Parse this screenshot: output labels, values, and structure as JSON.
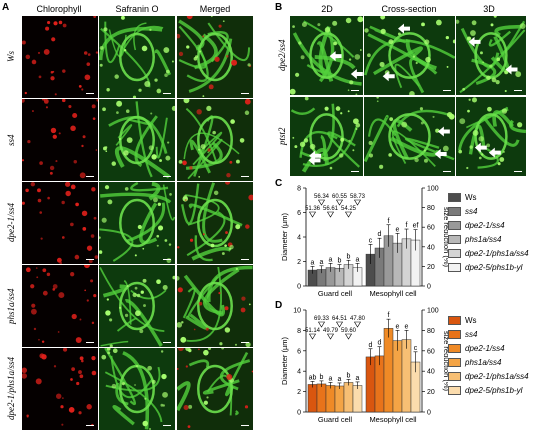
{
  "panelA": {
    "letter": "A",
    "columns": [
      "Chlorophyll",
      "Safranin O",
      "Merged"
    ],
    "rows": [
      "Ws",
      "ss4",
      "dpe2-1/ss4",
      "phs1a/ss4",
      "dpe2-1/phs1a/ss4"
    ]
  },
  "panelB": {
    "letter": "B",
    "columns": [
      "2D",
      "Cross-section",
      "3D"
    ],
    "rows": [
      "dpe2/ss4",
      "ptst2"
    ]
  },
  "panelC": {
    "letter": "C",
    "colors": {
      "bars": [
        "#4d4d4d",
        "#7a7a7a",
        "#999999",
        "#b8b8b8",
        "#d4d4d4",
        "#f2f2f2"
      ]
    }
  },
  "panelD": {
    "letter": "D",
    "colors": {
      "bars": [
        "#d9560f",
        "#e8731a",
        "#ef8a26",
        "#f4a445",
        "#f7bf74",
        "#fbdcad"
      ]
    }
  },
  "chart_data": [
    {
      "type": "bar",
      "panel": "C",
      "categories": [
        "Guard cell",
        "Mesophyll cell"
      ],
      "series": [
        {
          "name": "Ws",
          "values": [
            1.3,
            2.6
          ],
          "err": [
            0.3,
            0.8
          ],
          "letters": [
            "a",
            "c"
          ]
        },
        {
          "name": "ss4",
          "values": [
            1.35,
            3.1
          ],
          "err": [
            0.3,
            0.8
          ],
          "letters": [
            "a",
            "d"
          ]
        },
        {
          "name": "dpe2-1/ss4",
          "values": [
            1.5,
            4.1
          ],
          "err": [
            0.35,
            0.9
          ],
          "letters": [
            "a",
            "f"
          ]
        },
        {
          "name": "phs1a/ss4",
          "values": [
            1.45,
            3.5
          ],
          "err": [
            0.3,
            0.8
          ],
          "letters": [
            "b",
            "e"
          ]
        },
        {
          "name": "dpe2-1/phs1a/ss4",
          "values": [
            1.75,
            3.85
          ],
          "err": [
            0.35,
            0.8
          ],
          "letters": [
            "b",
            "f"
          ]
        },
        {
          "name": "dpe2-5/phs1b-yl",
          "values": [
            1.5,
            3.75
          ],
          "err": [
            0.35,
            0.85
          ],
          "letters": [
            "a",
            "ef"
          ]
        }
      ],
      "annotations": [
        "51.36",
        "56.34",
        "56.61",
        "60.55",
        "54.25",
        "58.73"
      ],
      "ylabel": "Diameter (µm)",
      "y2label": "size reduction (%)",
      "ylim": [
        0,
        8
      ],
      "y2lim": [
        0,
        100
      ],
      "yticks": [
        "0",
        "2",
        "4",
        "6",
        "8"
      ],
      "y2ticks": [
        "0",
        "20",
        "40",
        "60",
        "80",
        "100"
      ],
      "legend": "right"
    },
    {
      "type": "bar",
      "panel": "D",
      "categories": [
        "Guard cell",
        "Mesophyll cell"
      ],
      "series": [
        {
          "name": "Ws",
          "values": [
            2.7,
            5.4
          ],
          "err": [
            0.3,
            0.8
          ],
          "letters": [
            "ab",
            "d"
          ]
        },
        {
          "name": "ss4",
          "values": [
            2.75,
            5.5
          ],
          "err": [
            0.3,
            0.9
          ],
          "letters": [
            "b",
            "d"
          ]
        },
        {
          "name": "dpe2-1/ss4",
          "values": [
            2.6,
            8.2
          ],
          "err": [
            0.3,
            0.9
          ],
          "letters": [
            "a",
            "f"
          ]
        },
        {
          "name": "phs1a/ss4",
          "values": [
            2.55,
            7.0
          ],
          "err": [
            0.3,
            1.0
          ],
          "letters": [
            "a",
            "e"
          ]
        },
        {
          "name": "dpe2-1/phs1a/ss4",
          "values": [
            2.9,
            7.1
          ],
          "err": [
            0.3,
            0.9
          ],
          "letters": [
            "b",
            "e"
          ]
        },
        {
          "name": "dpe2-5/phs1b-yl",
          "values": [
            2.6,
            4.9
          ],
          "err": [
            0.35,
            1.0
          ],
          "letters": [
            "a",
            "c"
          ]
        }
      ],
      "annotations": [
        "51.14",
        "69.33",
        "49.79",
        "64.51",
        "59.60",
        "47.80"
      ],
      "ylabel": "Diameter (µm)",
      "y2label": "size reduction (%)",
      "ylim": [
        0,
        10
      ],
      "y2lim": [
        0,
        100
      ],
      "yticks": [
        "0",
        "2",
        "4",
        "6",
        "8",
        "10"
      ],
      "y2ticks": [
        "0",
        "20",
        "40",
        "60",
        "80",
        "100"
      ],
      "legend": "right"
    }
  ]
}
